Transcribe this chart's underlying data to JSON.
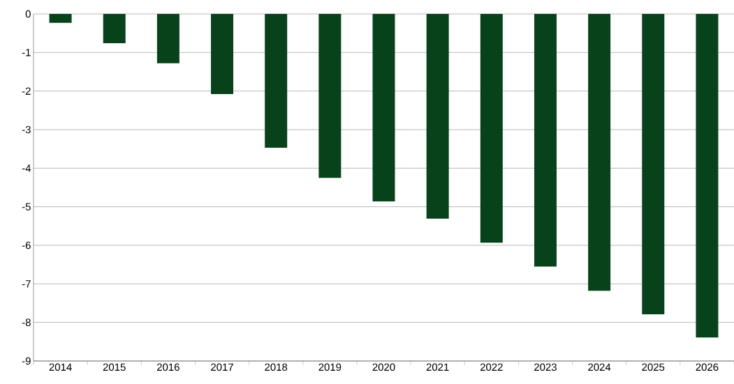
{
  "chart_data": {
    "type": "bar",
    "categories": [
      "2014",
      "2015",
      "2016",
      "2017",
      "2018",
      "2019",
      "2020",
      "2021",
      "2022",
      "2023",
      "2024",
      "2025",
      "2026"
    ],
    "values": [
      -0.23,
      -0.76,
      -1.28,
      -2.08,
      -3.47,
      -4.25,
      -4.86,
      -5.31,
      -5.93,
      -6.55,
      -7.18,
      -7.79,
      -8.39
    ],
    "color": "#07421a",
    "ylim": [
      -9,
      0
    ],
    "yticks": [
      -9,
      -8,
      -7,
      -6,
      -5,
      -4,
      -3,
      -2,
      -1,
      0
    ],
    "grid": "y"
  }
}
